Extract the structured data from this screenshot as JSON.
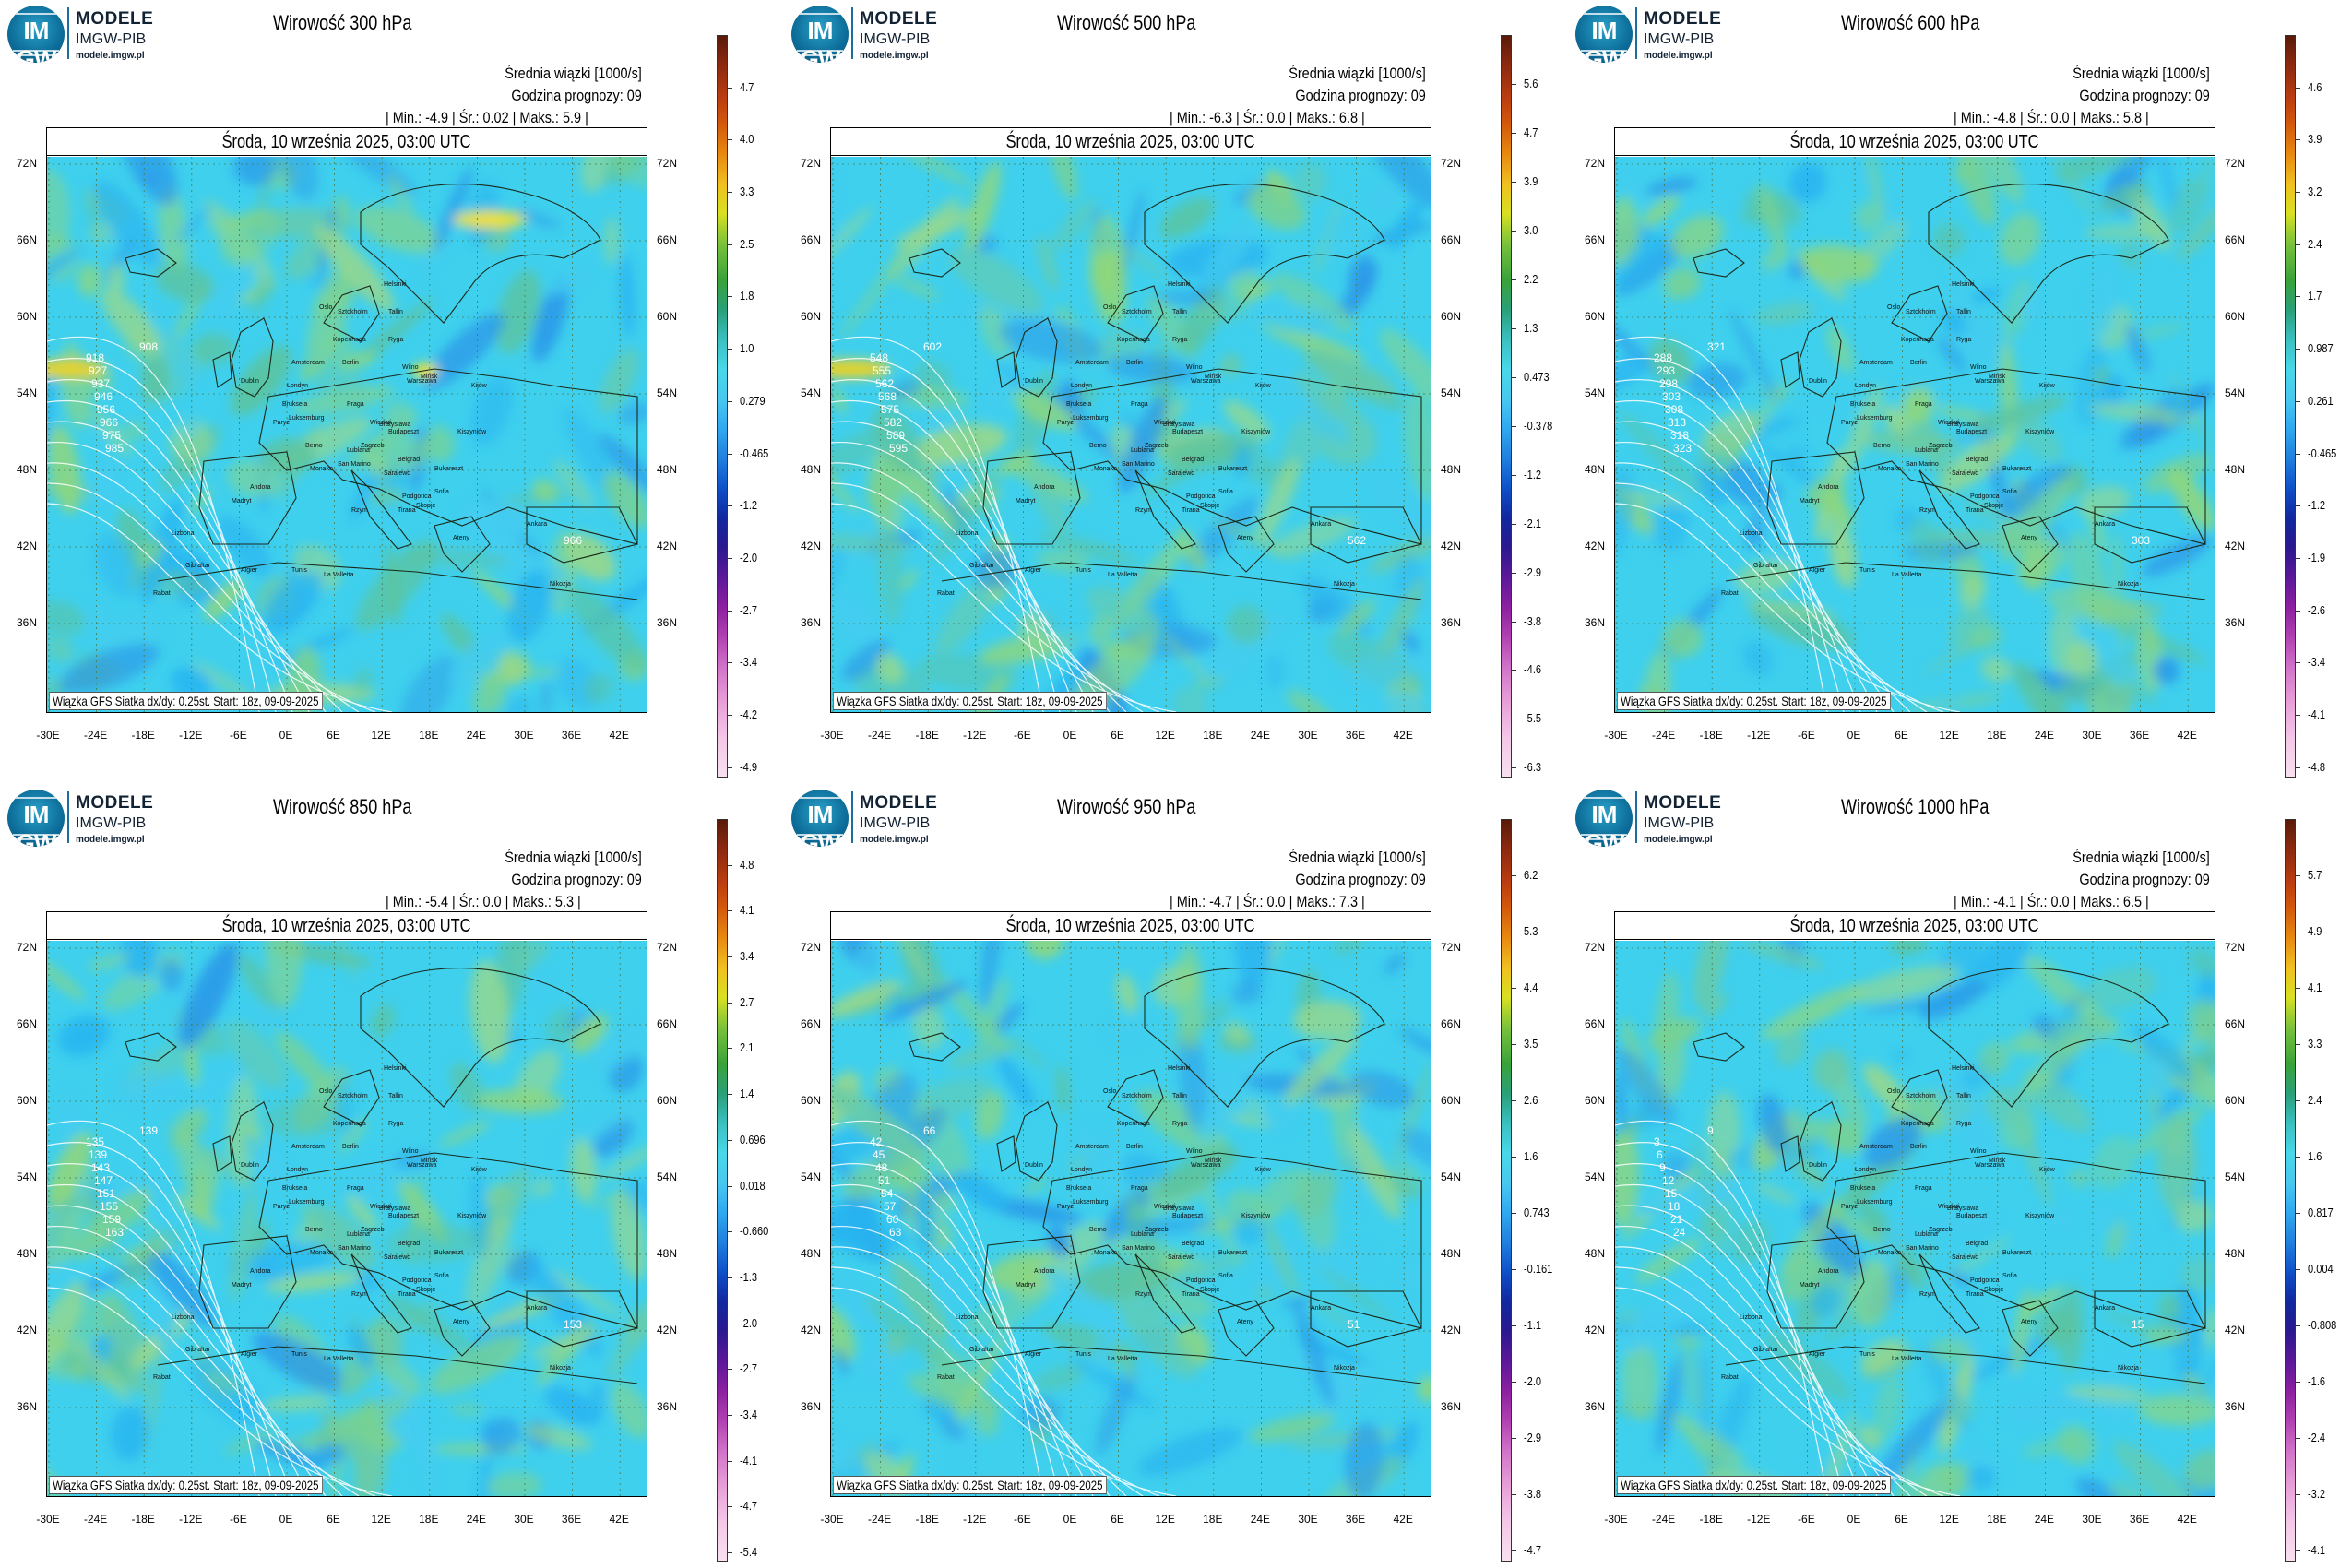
{
  "brand": {
    "line1": "MODELE",
    "line2": "IMGW-PIB",
    "line3": "modele.imgw.pl",
    "logo_text": "IM GW"
  },
  "common": {
    "subtitle": "Średnia wiązki [1000/s]",
    "forecast_hour": "Godzina prognozy: 09",
    "date": "Środa, 10 września 2025, 03:00 UTC",
    "source_note": "Wiązka GFS Siatka dx/dy: 0.25st. Start: 18z, 09-09-2025",
    "lat_labels": [
      "72N",
      "66N",
      "60N",
      "54N",
      "48N",
      "42N",
      "36N"
    ],
    "lon_labels": [
      "-30E",
      "-24E",
      "-18E",
      "-12E",
      "-6E",
      "0E",
      "6E",
      "12E",
      "18E",
      "24E",
      "30E",
      "36E",
      "42E"
    ]
  },
  "cities": [
    "Oslo",
    "Helsinki",
    "Sztokholm",
    "Tallin",
    "Ryga",
    "Wilno",
    "Mińsk",
    "Kopenhaga",
    "Dublin",
    "Londyn",
    "Amsterdam",
    "Berlin",
    "Warszawa",
    "Kijów",
    "Bruksela",
    "Luksemburg",
    "Paryż",
    "Praga",
    "Wiedeń",
    "Bratysława",
    "Budapeszt",
    "Kiszyniów",
    "Berno",
    "Lublana",
    "Zagrzeb",
    "Belgrad",
    "Bukareszt",
    "Sarajewo",
    "Podgorica",
    "Sofia",
    "Skopje",
    "Tirana",
    "Rzym",
    "San Marino",
    "Monako",
    "Andora",
    "Madryt",
    "Lizbona",
    "Ateny",
    "Ankara",
    "Gibraltar",
    "Algier",
    "Tunis",
    "La Valletta",
    "Rabat",
    "Nikozja"
  ],
  "panels": [
    {
      "title": "Wirowość 300 hPa",
      "min": "-4.9",
      "mean": "0.02",
      "max": "5.9",
      "colorbar": [
        "4.7",
        "4.0",
        "3.3",
        "2.5",
        "1.8",
        "1.0",
        "0.279",
        "-0.465",
        "-1.2",
        "-2.0",
        "-2.7",
        "-3.4",
        "-4.2",
        "-4.9"
      ],
      "contours": [
        "918",
        "927",
        "937",
        "946",
        "956",
        "966",
        "975",
        "985",
        "908",
        "966"
      ]
    },
    {
      "title": "Wirowość 500 hPa",
      "min": "-6.3",
      "mean": "0.0",
      "max": "6.8",
      "colorbar": [
        "5.6",
        "4.7",
        "3.9",
        "3.0",
        "2.2",
        "1.3",
        "0.473",
        "-0.378",
        "-1.2",
        "-2.1",
        "-2.9",
        "-3.8",
        "-4.6",
        "-5.5",
        "-6.3"
      ],
      "contours": [
        "548",
        "555",
        "562",
        "568",
        "575",
        "582",
        "589",
        "595",
        "602",
        "562"
      ]
    },
    {
      "title": "Wirowość 600 hPa",
      "min": "-4.8",
      "mean": "0.0",
      "max": "5.8",
      "colorbar": [
        "4.6",
        "3.9",
        "3.2",
        "2.4",
        "1.7",
        "0.987",
        "0.261",
        "-0.465",
        "-1.2",
        "-1.9",
        "-2.6",
        "-3.4",
        "-4.1",
        "-4.8"
      ],
      "contours": [
        "288",
        "293",
        "298",
        "303",
        "308",
        "313",
        "318",
        "323",
        "321",
        "303"
      ]
    },
    {
      "title": "Wirowość 850 hPa",
      "min": "-5.4",
      "mean": "0.0",
      "max": "5.3",
      "colorbar": [
        "4.8",
        "4.1",
        "3.4",
        "2.7",
        "2.1",
        "1.4",
        "0.696",
        "0.018",
        "-0.660",
        "-1.3",
        "-2.0",
        "-2.7",
        "-3.4",
        "-4.1",
        "-4.7",
        "-5.4"
      ],
      "contours": [
        "135",
        "139",
        "143",
        "147",
        "151",
        "155",
        "159",
        "163",
        "139",
        "153"
      ]
    },
    {
      "title": "Wirowość 950 hPa",
      "min": "-4.7",
      "mean": "0.0",
      "max": "7.3",
      "colorbar": [
        "6.2",
        "5.3",
        "4.4",
        "3.5",
        "2.6",
        "1.6",
        "0.743",
        "-0.161",
        "-1.1",
        "-2.0",
        "-2.9",
        "-3.8",
        "-4.7"
      ],
      "contours": [
        "42",
        "45",
        "48",
        "51",
        "54",
        "57",
        "60",
        "63",
        "66",
        "51"
      ]
    },
    {
      "title": "Wirowość 1000 hPa",
      "min": "-4.1",
      "mean": "0.0",
      "max": "6.5",
      "colorbar": [
        "5.7",
        "4.9",
        "4.1",
        "3.3",
        "2.4",
        "1.6",
        "0.817",
        "0.004",
        "-0.808",
        "-1.6",
        "-2.4",
        "-3.2",
        "-4.1"
      ],
      "contours": [
        "3",
        "6",
        "9",
        "12",
        "15",
        "18",
        "21",
        "24",
        "9",
        "15"
      ]
    }
  ]
}
